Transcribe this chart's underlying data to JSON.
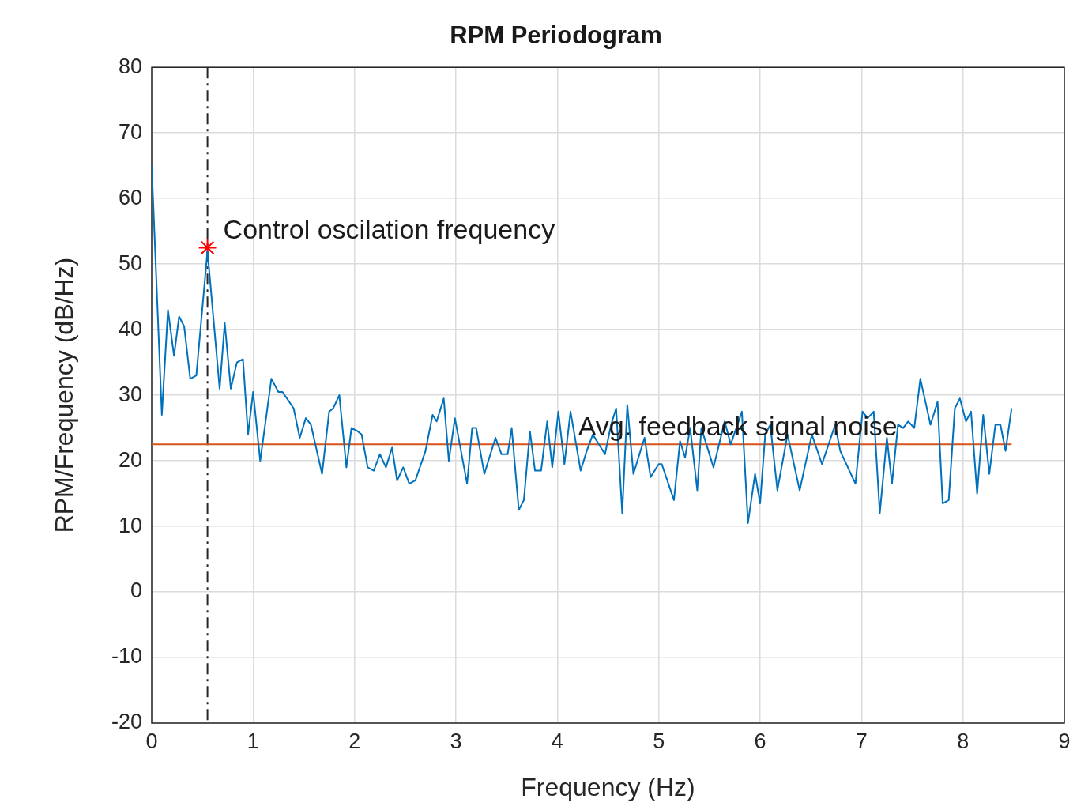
{
  "chart_data": {
    "type": "line",
    "title": "RPM Periodogram",
    "xlabel": "Frequency (Hz)",
    "ylabel": "RPM/Frequency (dB/Hz)",
    "xlim": [
      0,
      9
    ],
    "xticks": [
      0,
      1,
      2,
      3,
      4,
      5,
      6,
      7,
      8,
      9
    ],
    "ylim": [
      -20,
      80
    ],
    "yticks": [
      -20,
      -10,
      0,
      10,
      20,
      30,
      40,
      50,
      60,
      70,
      80
    ],
    "grid": true,
    "legend": false,
    "series": [
      {
        "color": "#0072bd",
        "marker": "none",
        "x": [
          0,
          0.1,
          0.16,
          0.22,
          0.27,
          0.32,
          0.38,
          0.44,
          0.55,
          0.67,
          0.72,
          0.78,
          0.84,
          0.9,
          0.95,
          1.0,
          1.07,
          1.18,
          1.25,
          1.29,
          1.4,
          1.46,
          1.52,
          1.57,
          1.68,
          1.75,
          1.79,
          1.85,
          1.92,
          1.97,
          2.03,
          2.07,
          2.13,
          2.19,
          2.25,
          2.31,
          2.37,
          2.42,
          2.48,
          2.54,
          2.6,
          2.7,
          2.77,
          2.81,
          2.88,
          2.93,
          2.99,
          3.11,
          3.16,
          3.2,
          3.28,
          3.39,
          3.45,
          3.51,
          3.55,
          3.62,
          3.67,
          3.73,
          3.78,
          3.84,
          3.9,
          3.95,
          4.01,
          4.07,
          4.13,
          4.23,
          4.29,
          4.35,
          4.47,
          4.53,
          4.58,
          4.64,
          4.69,
          4.75,
          4.86,
          4.92,
          5.0,
          5.03,
          5.15,
          5.21,
          5.26,
          5.31,
          5.38,
          5.42,
          5.54,
          5.65,
          5.71,
          5.82,
          5.88,
          5.95,
          6.0,
          6.05,
          6.1,
          6.17,
          6.27,
          6.39,
          6.51,
          6.61,
          6.74,
          6.79,
          6.94,
          7.01,
          7.06,
          7.12,
          7.18,
          7.25,
          7.3,
          7.36,
          7.41,
          7.46,
          7.52,
          7.58,
          7.68,
          7.75,
          7.8,
          7.86,
          7.92,
          7.97,
          8.03,
          8.08,
          8.14,
          8.2,
          8.26,
          8.32,
          8.37,
          8.42,
          8.48
        ],
        "values": [
          65,
          27,
          43,
          36,
          42,
          40.5,
          32.5,
          33,
          52,
          31,
          41,
          31,
          35,
          35.5,
          24,
          30.5,
          20,
          32.5,
          30.5,
          30.5,
          28,
          23.5,
          26.5,
          25.5,
          18,
          27.5,
          28,
          30,
          19,
          25,
          24.5,
          24,
          19,
          18.5,
          21,
          19,
          22,
          17,
          19,
          16.5,
          17,
          21.5,
          27,
          26,
          29.5,
          20,
          26.5,
          16.5,
          25,
          25,
          18,
          23.5,
          21,
          21,
          25,
          12.5,
          14,
          24.5,
          18.5,
          18.5,
          26,
          19,
          27.5,
          19.5,
          27.5,
          18.5,
          21.5,
          24,
          21,
          25.5,
          28,
          12,
          28.5,
          18,
          23.5,
          17.5,
          19.5,
          19.5,
          14,
          23,
          20.5,
          25,
          15.5,
          25,
          19,
          26,
          22.5,
          27.5,
          10.5,
          18,
          13.5,
          24,
          25.5,
          15.5,
          24,
          15.5,
          24,
          19.5,
          25.5,
          21.5,
          16.5,
          27.5,
          26.5,
          27.5,
          12,
          23.5,
          16.5,
          25.5,
          25,
          26,
          25,
          32.5,
          25.5,
          29,
          13.5,
          14,
          28,
          29.5,
          26,
          27.5,
          15,
          27,
          18,
          25.5,
          25.5,
          21.5,
          28
        ]
      },
      {
        "type": "scatter",
        "color": "#ff0000",
        "marker": "cross",
        "x": [
          0.55
        ],
        "values": [
          52.5
        ]
      }
    ],
    "ref_lines": [
      {
        "axis": "x",
        "value": 0.55,
        "color": "#262626",
        "line_style": "dashdot"
      },
      {
        "axis": "y",
        "value": 22.5,
        "color": "#d95319",
        "line_style": "solid"
      }
    ],
    "annotations": [
      {
        "text": "Control oscilation frequency",
        "x": 0.55,
        "y": 52.5
      },
      {
        "text": "Avg. feedback signal noise",
        "x": 4.05,
        "y": 22.5
      }
    ]
  }
}
